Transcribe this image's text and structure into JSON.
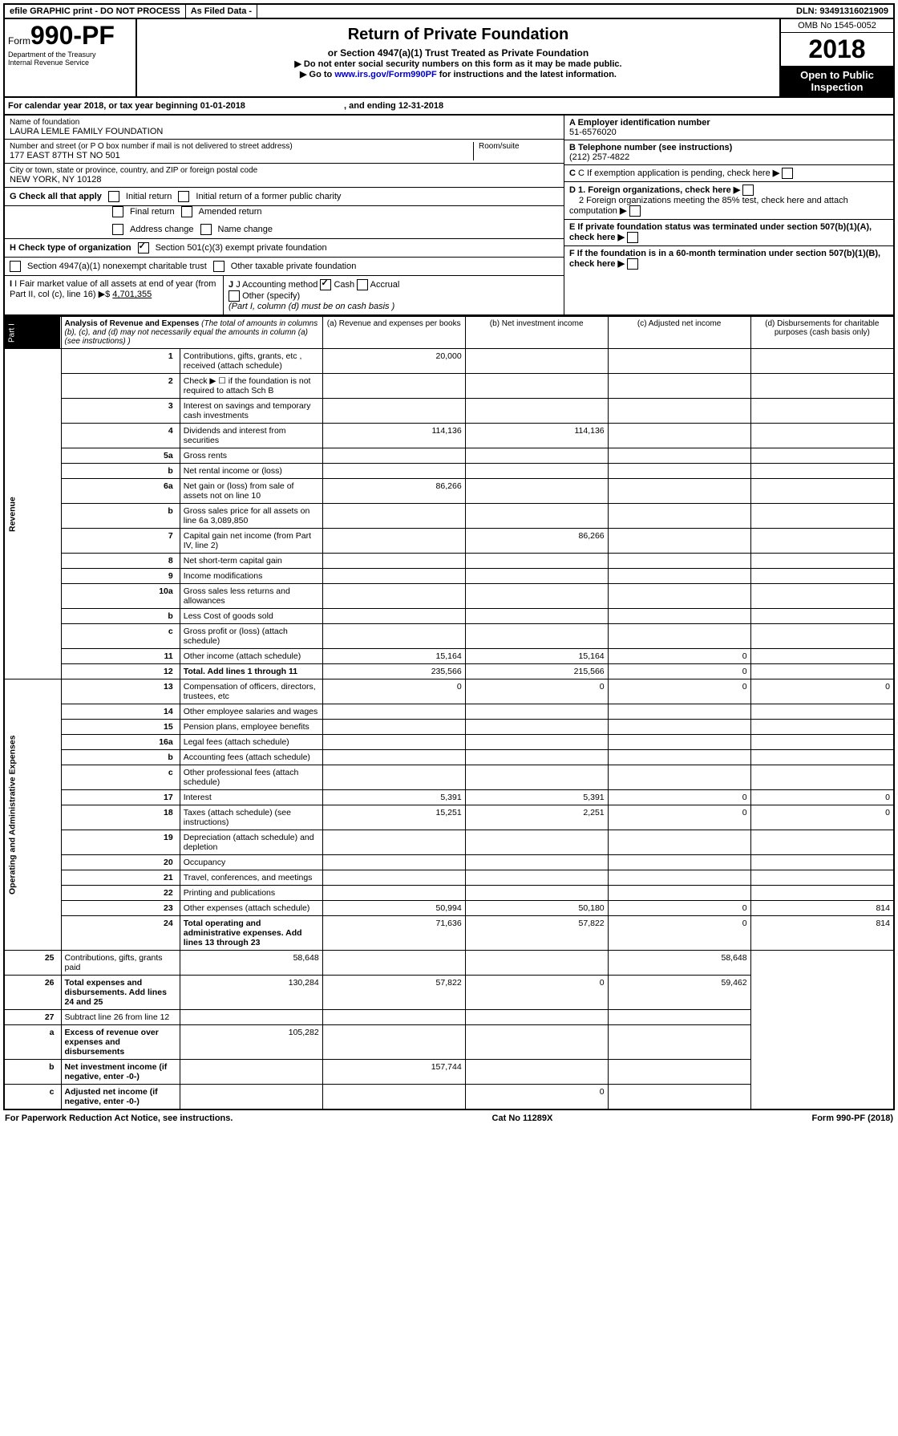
{
  "topbar": {
    "efile": "efile GRAPHIC print - DO NOT PROCESS",
    "asfiled": "As Filed Data -",
    "dln_label": "DLN:",
    "dln": "93491316021909"
  },
  "header": {
    "form_prefix": "Form",
    "form_number": "990-PF",
    "dept1": "Department of the Treasury",
    "dept2": "Internal Revenue Service",
    "title": "Return of Private Foundation",
    "subtitle": "or Section 4947(a)(1) Trust Treated as Private Foundation",
    "instr1": "▶ Do not enter social security numbers on this form as it may be made public.",
    "instr2_pre": "▶ Go to ",
    "instr2_link": "www.irs.gov/Form990PF",
    "instr2_post": " for instructions and the latest information.",
    "omb": "OMB No 1545-0052",
    "year": "2018",
    "open": "Open to Public Inspection"
  },
  "calyear": {
    "text_pre": "For calendar year 2018, or tax year beginning ",
    "begin": "01-01-2018",
    "text_mid": ", and ending ",
    "end": "12-31-2018"
  },
  "entity": {
    "name_label": "Name of foundation",
    "name": "LAURA LEMLE FAMILY FOUNDATION",
    "addr_label": "Number and street (or P O  box number if mail is not delivered to street address)",
    "addr": "177 EAST 87TH ST NO 501",
    "room_label": "Room/suite",
    "city_label": "City or town, state or province, country, and ZIP or foreign postal code",
    "city": "NEW YORK, NY  10128",
    "a_label": "A Employer identification number",
    "ein": "51-6576020",
    "b_label": "B Telephone number (see instructions)",
    "phone": "(212) 257-4822",
    "c_label": "C If exemption application is pending, check here",
    "d1": "D 1. Foreign organizations, check here",
    "d2": "2 Foreign organizations meeting the 85% test, check here and attach computation",
    "e": "E  If private foundation status was terminated under section 507(b)(1)(A), check here",
    "f": "F  If the foundation is in a 60-month termination under section 507(b)(1)(B), check here"
  },
  "g": {
    "label": "G Check all that apply",
    "opts": [
      "Initial return",
      "Initial return of a former public charity",
      "Final return",
      "Amended return",
      "Address change",
      "Name change"
    ]
  },
  "h": {
    "label": "H Check type of organization",
    "opt1": "Section 501(c)(3) exempt private foundation",
    "opt2": "Section 4947(a)(1) nonexempt charitable trust",
    "opt3": "Other taxable private foundation"
  },
  "i": {
    "label": "I Fair market value of all assets at end of year (from Part II, col  (c), line 16) ▶$",
    "value": "4,701,355"
  },
  "j": {
    "label": "J Accounting method",
    "cash": "Cash",
    "accrual": "Accrual",
    "other": "Other (specify)",
    "note": "(Part I, column (d) must be on cash basis )"
  },
  "part1": {
    "label": "Part I",
    "title": "Analysis of Revenue and Expenses",
    "desc": "(The total of amounts in columns (b), (c), and (d) may not necessarily equal the amounts in column (a) (see instructions) )",
    "col_a": "(a) Revenue and expenses per books",
    "col_b": "(b) Net investment income",
    "col_c": "(c) Adjusted net income",
    "col_d": "(d) Disbursements for charitable purposes (cash basis only)"
  },
  "side": {
    "revenue": "Revenue",
    "expenses": "Operating and Administrative Expenses"
  },
  "rows": [
    {
      "n": "1",
      "d": "Contributions, gifts, grants, etc , received (attach schedule)",
      "a": "20,000",
      "b": "",
      "c": "",
      "e": ""
    },
    {
      "n": "2",
      "d": "Check ▶ ☐ if the foundation is not required to attach Sch  B",
      "a": "",
      "b": "",
      "c": "",
      "e": ""
    },
    {
      "n": "3",
      "d": "Interest on savings and temporary cash investments",
      "a": "",
      "b": "",
      "c": "",
      "e": ""
    },
    {
      "n": "4",
      "d": "Dividends and interest from securities",
      "a": "114,136",
      "b": "114,136",
      "c": "",
      "e": ""
    },
    {
      "n": "5a",
      "d": "Gross rents",
      "a": "",
      "b": "",
      "c": "",
      "e": ""
    },
    {
      "n": "b",
      "d": "Net rental income or (loss)",
      "a": "",
      "b": "",
      "c": "",
      "e": ""
    },
    {
      "n": "6a",
      "d": "Net gain or (loss) from sale of assets not on line 10",
      "a": "86,266",
      "b": "",
      "c": "",
      "e": ""
    },
    {
      "n": "b",
      "d": "Gross sales price for all assets on line 6a          3,089,850",
      "a": "",
      "b": "",
      "c": "",
      "e": ""
    },
    {
      "n": "7",
      "d": "Capital gain net income (from Part IV, line 2)",
      "a": "",
      "b": "86,266",
      "c": "",
      "e": ""
    },
    {
      "n": "8",
      "d": "Net short-term capital gain",
      "a": "",
      "b": "",
      "c": "",
      "e": ""
    },
    {
      "n": "9",
      "d": "Income modifications",
      "a": "",
      "b": "",
      "c": "",
      "e": ""
    },
    {
      "n": "10a",
      "d": "Gross sales less returns and allowances",
      "a": "",
      "b": "",
      "c": "",
      "e": ""
    },
    {
      "n": "b",
      "d": "Less  Cost of goods sold",
      "a": "",
      "b": "",
      "c": "",
      "e": ""
    },
    {
      "n": "c",
      "d": "Gross profit or (loss) (attach schedule)",
      "a": "",
      "b": "",
      "c": "",
      "e": ""
    },
    {
      "n": "11",
      "d": "Other income (attach schedule)",
      "a": "15,164",
      "b": "15,164",
      "c": "0",
      "e": "",
      "icon": true
    },
    {
      "n": "12",
      "d": "Total. Add lines 1 through 11",
      "a": "235,566",
      "b": "215,566",
      "c": "0",
      "e": "",
      "bold": true
    },
    {
      "n": "13",
      "d": "Compensation of officers, directors, trustees, etc",
      "a": "0",
      "b": "0",
      "c": "0",
      "e": "0"
    },
    {
      "n": "14",
      "d": "Other employee salaries and wages",
      "a": "",
      "b": "",
      "c": "",
      "e": ""
    },
    {
      "n": "15",
      "d": "Pension plans, employee benefits",
      "a": "",
      "b": "",
      "c": "",
      "e": ""
    },
    {
      "n": "16a",
      "d": "Legal fees (attach schedule)",
      "a": "",
      "b": "",
      "c": "",
      "e": ""
    },
    {
      "n": "b",
      "d": "Accounting fees (attach schedule)",
      "a": "",
      "b": "",
      "c": "",
      "e": ""
    },
    {
      "n": "c",
      "d": "Other professional fees (attach schedule)",
      "a": "",
      "b": "",
      "c": "",
      "e": ""
    },
    {
      "n": "17",
      "d": "Interest",
      "a": "5,391",
      "b": "5,391",
      "c": "0",
      "e": "0"
    },
    {
      "n": "18",
      "d": "Taxes (attach schedule) (see instructions)",
      "a": "15,251",
      "b": "2,251",
      "c": "0",
      "e": "0",
      "icon": true
    },
    {
      "n": "19",
      "d": "Depreciation (attach schedule) and depletion",
      "a": "",
      "b": "",
      "c": "",
      "e": ""
    },
    {
      "n": "20",
      "d": "Occupancy",
      "a": "",
      "b": "",
      "c": "",
      "e": ""
    },
    {
      "n": "21",
      "d": "Travel, conferences, and meetings",
      "a": "",
      "b": "",
      "c": "",
      "e": ""
    },
    {
      "n": "22",
      "d": "Printing and publications",
      "a": "",
      "b": "",
      "c": "",
      "e": ""
    },
    {
      "n": "23",
      "d": "Other expenses (attach schedule)",
      "a": "50,994",
      "b": "50,180",
      "c": "0",
      "e": "814",
      "icon": true
    },
    {
      "n": "24",
      "d": "Total operating and administrative expenses. Add lines 13 through 23",
      "a": "71,636",
      "b": "57,822",
      "c": "0",
      "e": "814",
      "bold": true
    },
    {
      "n": "25",
      "d": "Contributions, gifts, grants paid",
      "a": "58,648",
      "b": "",
      "c": "",
      "e": "58,648"
    },
    {
      "n": "26",
      "d": "Total expenses and disbursements. Add lines 24 and 25",
      "a": "130,284",
      "b": "57,822",
      "c": "0",
      "e": "59,462",
      "bold": true
    },
    {
      "n": "27",
      "d": "Subtract line 26 from line 12",
      "a": "",
      "b": "",
      "c": "",
      "e": ""
    },
    {
      "n": "a",
      "d": "Excess of revenue over expenses and disbursements",
      "a": "105,282",
      "b": "",
      "c": "",
      "e": "",
      "bold": true
    },
    {
      "n": "b",
      "d": "Net investment income (if negative, enter -0-)",
      "a": "",
      "b": "157,744",
      "c": "",
      "e": "",
      "bold": true
    },
    {
      "n": "c",
      "d": "Adjusted net income (if negative, enter -0-)",
      "a": "",
      "b": "",
      "c": "0",
      "e": "",
      "bold": true
    }
  ],
  "footer": {
    "left": "For Paperwork Reduction Act Notice, see instructions.",
    "mid": "Cat  No  11289X",
    "right": "Form 990-PF (2018)"
  }
}
